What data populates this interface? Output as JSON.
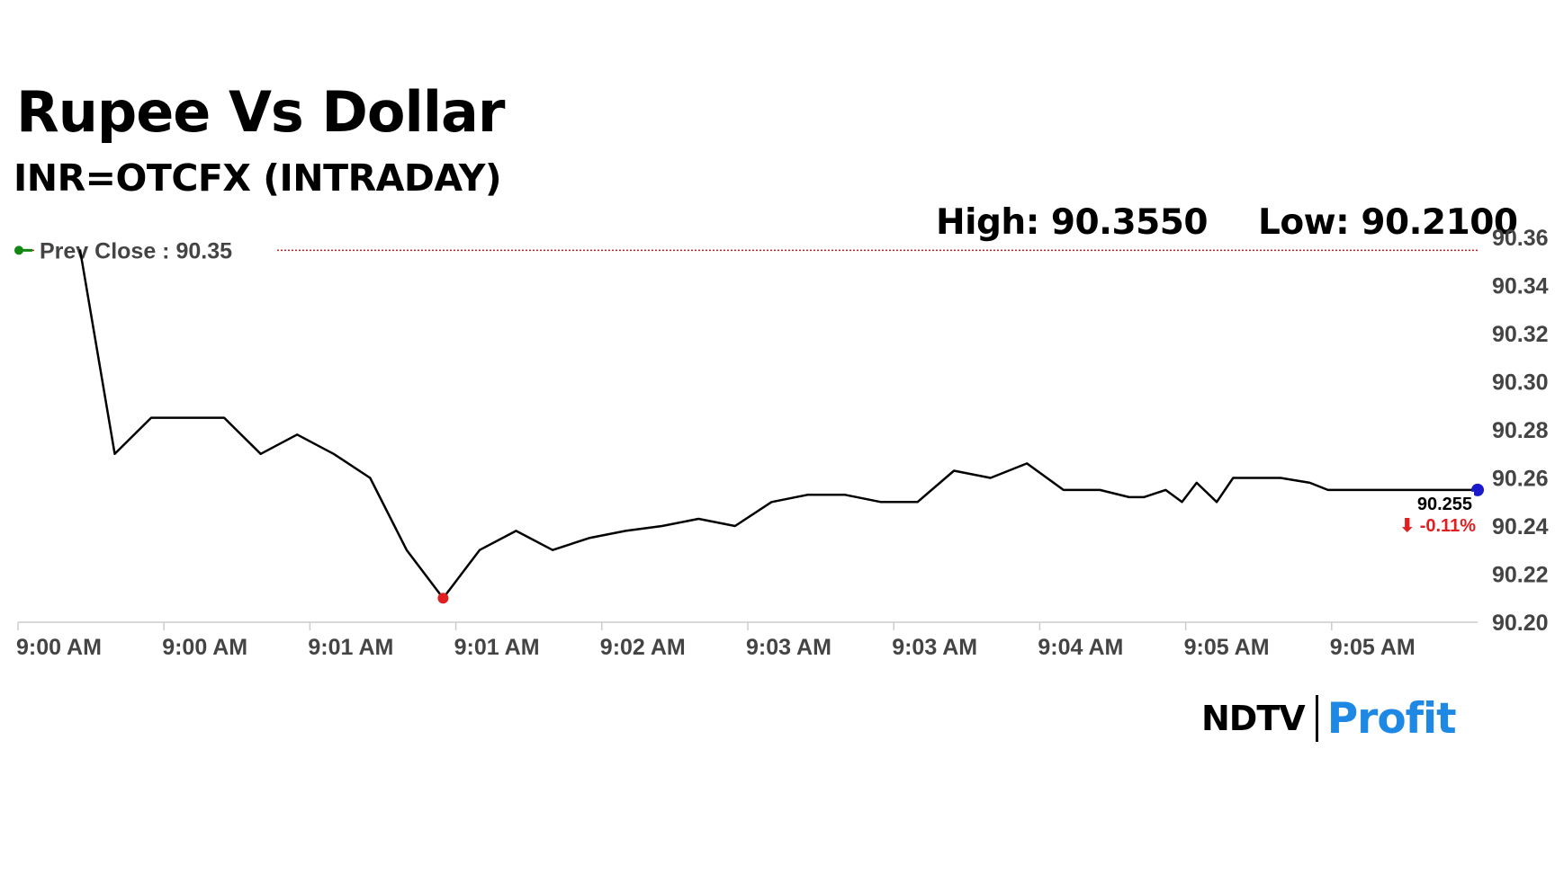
{
  "title": "Rupee Vs Dollar",
  "subtitle": "INR=OTCFX (INTRADAY)",
  "stats": {
    "high": "High: 90.3550",
    "low": "Low: 90.2100"
  },
  "colors": {
    "line": "#000000",
    "prev_close": "#b22222",
    "low_marker": "#e02020",
    "last_marker": "#1a1acc",
    "change_down": "#e02020",
    "prev_marker": "#118811"
  },
  "logo": {
    "ndtv": "NDTV",
    "profit": "Profit"
  },
  "chart_data": {
    "type": "line",
    "title": "Rupee Vs Dollar",
    "subtitle": "INR=OTCFX (INTRADAY)",
    "prev_close": {
      "label": "Prev Close : 90.35",
      "value": 90.355
    },
    "last": {
      "value_label": "90.255",
      "change_label": "⬇ -0.11%",
      "value": 90.255
    },
    "ylim": [
      90.2,
      90.36
    ],
    "yticks": [
      90.36,
      90.34,
      90.32,
      90.3,
      90.28,
      90.26,
      90.24,
      90.22,
      90.2
    ],
    "ytick_labels": [
      "90.36",
      "90.34",
      "90.32",
      "90.30",
      "90.28",
      "90.26",
      "90.24",
      "90.22",
      "90.20"
    ],
    "xlim": [
      0,
      40
    ],
    "xticks": [
      0,
      4,
      8,
      12,
      16,
      20,
      24,
      28,
      32,
      36
    ],
    "xtick_labels": [
      "9:00 AM",
      "9:00 AM",
      "9:01 AM",
      "9:01 AM",
      "9:02 AM",
      "9:03 AM",
      "9:03 AM",
      "9:04 AM",
      "9:05 AM",
      "9:05 AM"
    ],
    "grid": false,
    "series": [
      {
        "x": [
          1.7,
          2.65,
          3.65,
          4.65,
          5.65,
          6.65,
          7.65,
          8.65,
          9.65,
          10.65,
          11.65,
          12.65,
          13.65,
          14.65,
          15.65,
          16.65,
          17.65,
          18.65,
          19.65,
          20.65,
          21.65,
          22.65,
          23.65,
          24.65,
          25.65,
          26.65,
          27.65,
          28.65,
          29.65,
          30.45,
          30.85,
          31.45,
          31.9,
          32.3,
          32.85,
          33.3,
          33.9,
          34.6,
          35.4,
          35.9,
          36.3,
          37.4,
          38.5,
          38.9,
          39.3,
          40.0
        ],
        "y": [
          90.355,
          90.27,
          90.285,
          90.285,
          90.285,
          90.27,
          90.278,
          90.27,
          90.26,
          90.23,
          90.21,
          90.23,
          90.238,
          90.23,
          90.235,
          90.238,
          90.24,
          90.243,
          90.24,
          90.25,
          90.253,
          90.253,
          90.25,
          90.25,
          90.263,
          90.26,
          90.266,
          90.255,
          90.255,
          90.252,
          90.252,
          90.255,
          90.25,
          90.258,
          90.25,
          90.26,
          90.26,
          90.26,
          90.258,
          90.255,
          90.255,
          90.255,
          90.255,
          90.255,
          90.255,
          90.255
        ]
      }
    ],
    "low_point": {
      "x": 11.65,
      "y": 90.21
    }
  }
}
